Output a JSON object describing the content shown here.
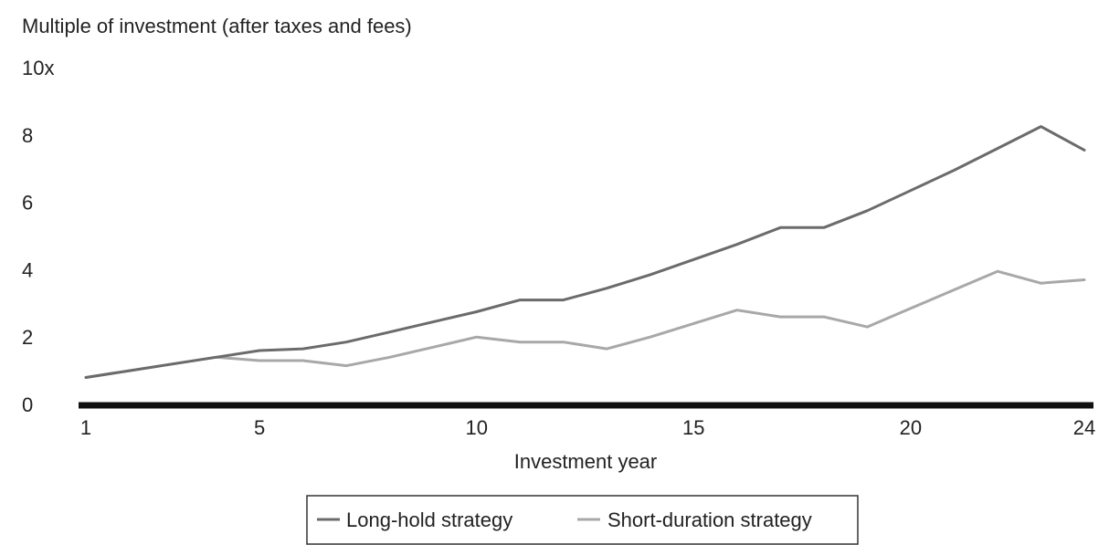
{
  "chart_data": {
    "type": "line",
    "title": "",
    "ylabel": "Multiple of investment (after taxes and fees)",
    "xlabel": "Investment year",
    "x": [
      1,
      2,
      3,
      4,
      5,
      6,
      7,
      8,
      9,
      10,
      11,
      12,
      13,
      14,
      15,
      16,
      17,
      18,
      19,
      20,
      21,
      22,
      23,
      24
    ],
    "xticks": [
      1,
      5,
      10,
      15,
      20,
      24
    ],
    "xtick_labels": [
      "1",
      "5",
      "10",
      "15",
      "20",
      "24"
    ],
    "xlim": [
      1,
      24
    ],
    "ylim": [
      0,
      10
    ],
    "yticks": [
      0,
      2,
      4,
      6,
      8,
      10
    ],
    "ytick_labels": [
      "0",
      "2",
      "4",
      "6",
      "8",
      "10x"
    ],
    "grid": false,
    "legend_position": "bottom-center",
    "series": [
      {
        "name": "Long-hold strategy",
        "color": "#6b6b6b",
        "values": [
          0.8,
          1.0,
          1.2,
          1.4,
          1.6,
          1.65,
          1.85,
          2.15,
          2.45,
          2.75,
          3.1,
          3.1,
          3.45,
          3.85,
          4.3,
          4.75,
          5.25,
          5.25,
          5.75,
          6.35,
          6.95,
          7.6,
          8.25,
          7.55
        ]
      },
      {
        "name": "Short-duration strategy",
        "color": "#a8a8a8",
        "values": [
          0.8,
          1.0,
          1.2,
          1.4,
          1.3,
          1.3,
          1.15,
          1.4,
          1.7,
          2.0,
          1.85,
          1.85,
          1.65,
          2.0,
          2.4,
          2.8,
          2.6,
          2.6,
          2.3,
          2.85,
          3.4,
          3.95,
          3.6,
          3.7
        ]
      }
    ]
  }
}
